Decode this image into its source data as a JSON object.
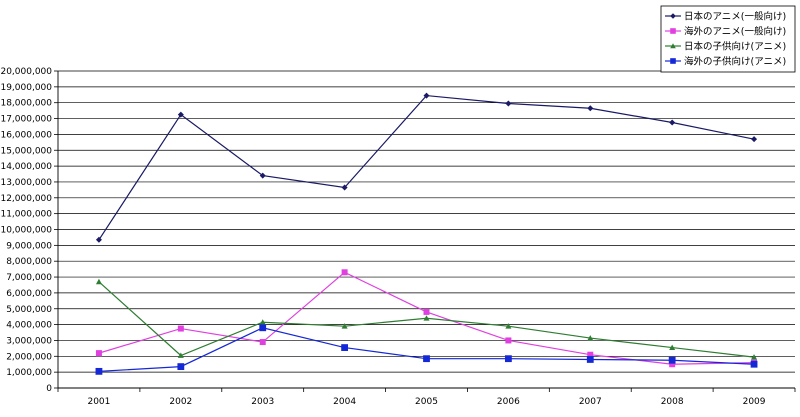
{
  "chart_data": {
    "type": "line",
    "categories": [
      "2001",
      "2002",
      "2003",
      "2004",
      "2005",
      "2006",
      "2007",
      "2008",
      "2009"
    ],
    "ylim": [
      0,
      20000000
    ],
    "ytick_step": 1000000,
    "grid": true,
    "legend_position": "top-right",
    "title": "",
    "xlabel": "",
    "ylabel": "",
    "series": [
      {
        "name": "日本のアニメ(一般向け)",
        "color": "#1a1a66",
        "marker": "diamond",
        "values": [
          9350000,
          17250000,
          13400000,
          12650000,
          18450000,
          17950000,
          17650000,
          16750000,
          15700000
        ]
      },
      {
        "name": "海外のアニメ(一般向け)",
        "color": "#e040e0",
        "marker": "square",
        "values": [
          2200000,
          3750000,
          2900000,
          7300000,
          4800000,
          3000000,
          2100000,
          1500000,
          1600000
        ]
      },
      {
        "name": "日本の子供向け(アニメ)",
        "color": "#2e7d32",
        "marker": "triangle",
        "values": [
          6700000,
          2050000,
          4150000,
          3900000,
          4400000,
          3900000,
          3150000,
          2550000,
          1950000
        ]
      },
      {
        "name": "海外の子供向け(アニメ)",
        "color": "#1428d6",
        "marker": "square",
        "values": [
          1050000,
          1350000,
          3800000,
          2550000,
          1850000,
          1850000,
          1800000,
          1750000,
          1500000
        ]
      }
    ]
  }
}
